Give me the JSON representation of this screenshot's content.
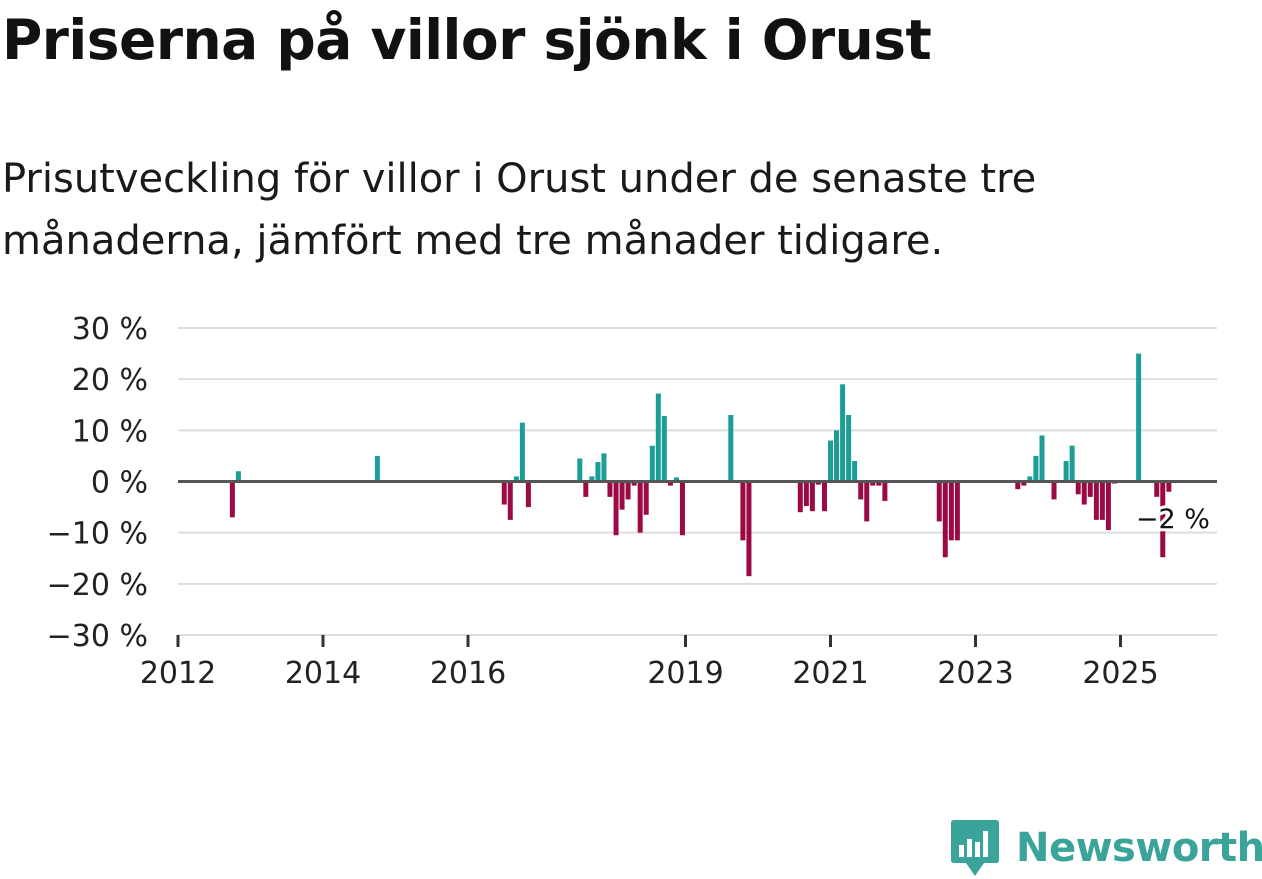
{
  "title": "Priserna på villor sjönk i Orust",
  "subtitle": "Prisutveckling för villor i Orust under de senaste tre månaderna, jämfört med tre månader tidigare.",
  "brand": {
    "name": "Newsworthy",
    "icon": "newsworthy-logo-icon"
  },
  "colors": {
    "positive": "#1a9e96",
    "negative": "#9b0a45",
    "grid": "#dddddd",
    "zero_line": "#555555",
    "text": "#222222"
  },
  "chart_data": {
    "type": "bar",
    "title": "Priserna på villor sjönk i Orust",
    "xlabel": "",
    "ylabel": "",
    "ylim": [
      -30,
      30
    ],
    "xlim": [
      2012.0,
      2027.0
    ],
    "y_ticks": [
      30,
      20,
      10,
      0,
      -10,
      -20,
      -30
    ],
    "y_tick_labels": [
      "30 %",
      "20 %",
      "10 %",
      "0 %",
      "−10 %",
      "−20 %",
      "−30 %"
    ],
    "x_ticks": [
      2012,
      2014,
      2016,
      2019,
      2021,
      2023,
      2025
    ],
    "x_tick_labels": [
      "2012",
      "2014",
      "2016",
      "2019",
      "2021",
      "2023",
      "2025"
    ],
    "last_value_label": "−2 %",
    "series": [
      {
        "name": "Prisutveckling",
        "x": [
          2012.75,
          2012.833,
          2014.75,
          2016.5,
          2016.583,
          2016.667,
          2016.75,
          2016.833,
          2017.542,
          2017.625,
          2017.708,
          2017.792,
          2017.875,
          2017.958,
          2018.042,
          2018.125,
          2018.208,
          2018.292,
          2018.375,
          2018.458,
          2018.542,
          2018.625,
          2018.708,
          2018.792,
          2018.875,
          2018.958,
          2019.625,
          2019.792,
          2019.875,
          2020.583,
          2020.667,
          2020.75,
          2020.833,
          2020.917,
          2021.0,
          2021.083,
          2021.167,
          2021.25,
          2021.333,
          2021.417,
          2021.5,
          2021.583,
          2021.667,
          2021.75,
          2022.5,
          2022.583,
          2022.667,
          2022.75,
          2023.583,
          2023.667,
          2023.75,
          2023.833,
          2023.917,
          2024.083,
          2024.25,
          2024.333,
          2024.417,
          2024.5,
          2024.583,
          2024.667,
          2024.75,
          2024.833,
          2024.917,
          2025.25,
          2025.5,
          2025.583,
          2025.667
        ],
        "values": [
          -7,
          2,
          5,
          -4.5,
          -7.5,
          1,
          11.5,
          -5,
          4.5,
          -3,
          1,
          3.8,
          5.5,
          -3,
          -10.5,
          -5.5,
          -3.5,
          -0.8,
          -10,
          -6.5,
          7,
          17.2,
          12.8,
          -0.8,
          0.8,
          -10.5,
          13,
          -11.5,
          -18.5,
          -6,
          -4.8,
          -5.8,
          -0.6,
          -5.8,
          8,
          10,
          19,
          13,
          4,
          -3.5,
          -7.8,
          -0.8,
          -0.8,
          -3.8,
          -7.8,
          -14.8,
          -11.5,
          -11.5,
          -1.5,
          -0.8,
          1,
          5,
          9,
          -3.5,
          4,
          7,
          -2.5,
          -4.5,
          -3,
          -7.5,
          -7.5,
          -9.5,
          -0.4,
          25,
          -3,
          -14.8,
          -2
        ]
      }
    ]
  }
}
